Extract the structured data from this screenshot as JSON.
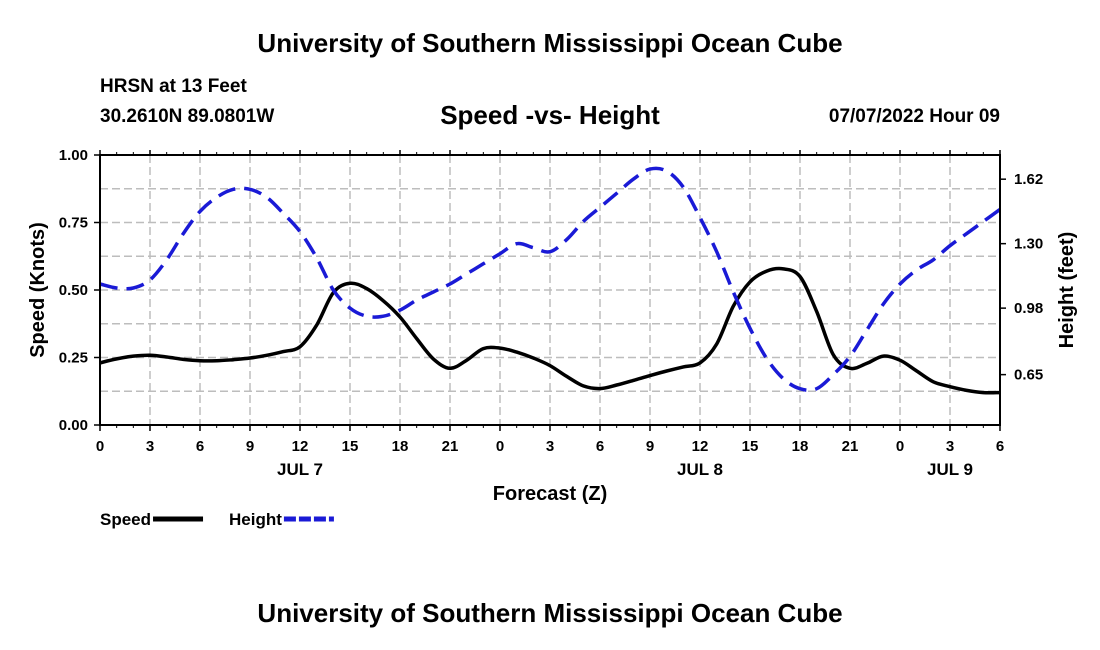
{
  "header": {
    "title": "University of Southern Mississippi Ocean Cube",
    "station": "HRSN at 13 Feet",
    "coordinates": "30.2610N  89.0801W",
    "subtitle": "Speed -vs- Height",
    "datetime": "07/07/2022 Hour 09",
    "footer_title": "University of Southern Mississippi Ocean Cube"
  },
  "chart_data": {
    "type": "line",
    "xlabel": "Forecast (Z)",
    "ylabel_left": "Speed (Knots)",
    "ylabel_right": "Height (feet)",
    "x_range": [
      0,
      54
    ],
    "x_ticks": [
      0,
      3,
      6,
      9,
      12,
      15,
      18,
      21,
      24,
      27,
      30,
      33,
      36,
      39,
      42,
      45,
      48,
      51,
      54
    ],
    "x_tick_labels": [
      "0",
      "3",
      "6",
      "9",
      "12",
      "15",
      "18",
      "21",
      "0",
      "3",
      "6",
      "9",
      "12",
      "15",
      "18",
      "21",
      "0",
      "3",
      "6"
    ],
    "day_labels": [
      {
        "x": 12,
        "label": "JUL 7"
      },
      {
        "x": 36,
        "label": "JUL 8"
      },
      {
        "x": 51,
        "label": "JUL 9"
      }
    ],
    "left_axis": {
      "range": [
        0,
        1
      ],
      "ticks": [
        0.0,
        0.25,
        0.5,
        0.75,
        1.0
      ],
      "tick_labels": [
        "0.00",
        "0.25",
        "0.50",
        "0.75",
        "1.00"
      ]
    },
    "right_axis": {
      "range": [
        0.4,
        1.74
      ],
      "ticks": [
        0.65,
        0.98,
        1.3,
        1.62
      ],
      "tick_labels": [
        "0.65",
        "0.98",
        "1.30",
        "1.62"
      ]
    },
    "grid": true,
    "series": [
      {
        "name": "Speed",
        "axis": "left",
        "color": "#000000",
        "dash": "solid",
        "x": [
          0,
          1,
          2,
          3,
          4,
          5,
          6,
          7,
          8,
          9,
          10,
          11,
          12,
          13,
          14,
          15,
          16,
          17,
          18,
          19,
          20,
          21,
          22,
          23,
          24,
          25,
          26,
          27,
          28,
          29,
          30,
          31,
          32,
          33,
          34,
          35,
          36,
          37,
          38,
          39,
          40,
          41,
          42,
          43,
          44,
          45,
          46,
          47,
          48,
          49,
          50,
          51,
          52,
          53,
          54
        ],
        "values": [
          0.23,
          0.245,
          0.255,
          0.258,
          0.252,
          0.243,
          0.238,
          0.238,
          0.242,
          0.248,
          0.258,
          0.272,
          0.29,
          0.37,
          0.49,
          0.525,
          0.505,
          0.46,
          0.4,
          0.32,
          0.245,
          0.21,
          0.24,
          0.283,
          0.285,
          0.27,
          0.248,
          0.22,
          0.18,
          0.145,
          0.135,
          0.148,
          0.165,
          0.183,
          0.2,
          0.215,
          0.23,
          0.3,
          0.44,
          0.53,
          0.57,
          0.578,
          0.55,
          0.42,
          0.26,
          0.21,
          0.228,
          0.255,
          0.24,
          0.2,
          0.16,
          0.142,
          0.128,
          0.12,
          0.12
        ]
      },
      {
        "name": "Height",
        "axis": "right",
        "color": "#1a1ad6",
        "dash": "dashed",
        "x": [
          0,
          1,
          2,
          3,
          4,
          5,
          6,
          7,
          8,
          9,
          10,
          11,
          12,
          13,
          14,
          15,
          16,
          17,
          18,
          19,
          20,
          21,
          22,
          23,
          24,
          25,
          26,
          27,
          28,
          29,
          30,
          31,
          32,
          33,
          34,
          35,
          36,
          37,
          38,
          39,
          40,
          41,
          42,
          43,
          44,
          45,
          46,
          47,
          48,
          49,
          50,
          51,
          52,
          53,
          54
        ],
        "values": [
          1.1,
          1.08,
          1.08,
          1.12,
          1.22,
          1.35,
          1.46,
          1.53,
          1.57,
          1.57,
          1.53,
          1.45,
          1.36,
          1.23,
          1.07,
          0.98,
          0.94,
          0.94,
          0.97,
          1.02,
          1.06,
          1.1,
          1.15,
          1.2,
          1.25,
          1.3,
          1.28,
          1.26,
          1.32,
          1.41,
          1.48,
          1.55,
          1.62,
          1.67,
          1.66,
          1.58,
          1.43,
          1.26,
          1.06,
          0.88,
          0.73,
          0.63,
          0.58,
          0.58,
          0.65,
          0.74,
          0.87,
          1.0,
          1.1,
          1.17,
          1.22,
          1.29,
          1.35,
          1.41,
          1.47
        ]
      }
    ],
    "legend": {
      "position": "bottom-left",
      "items": [
        "Speed",
        "Height"
      ]
    }
  }
}
